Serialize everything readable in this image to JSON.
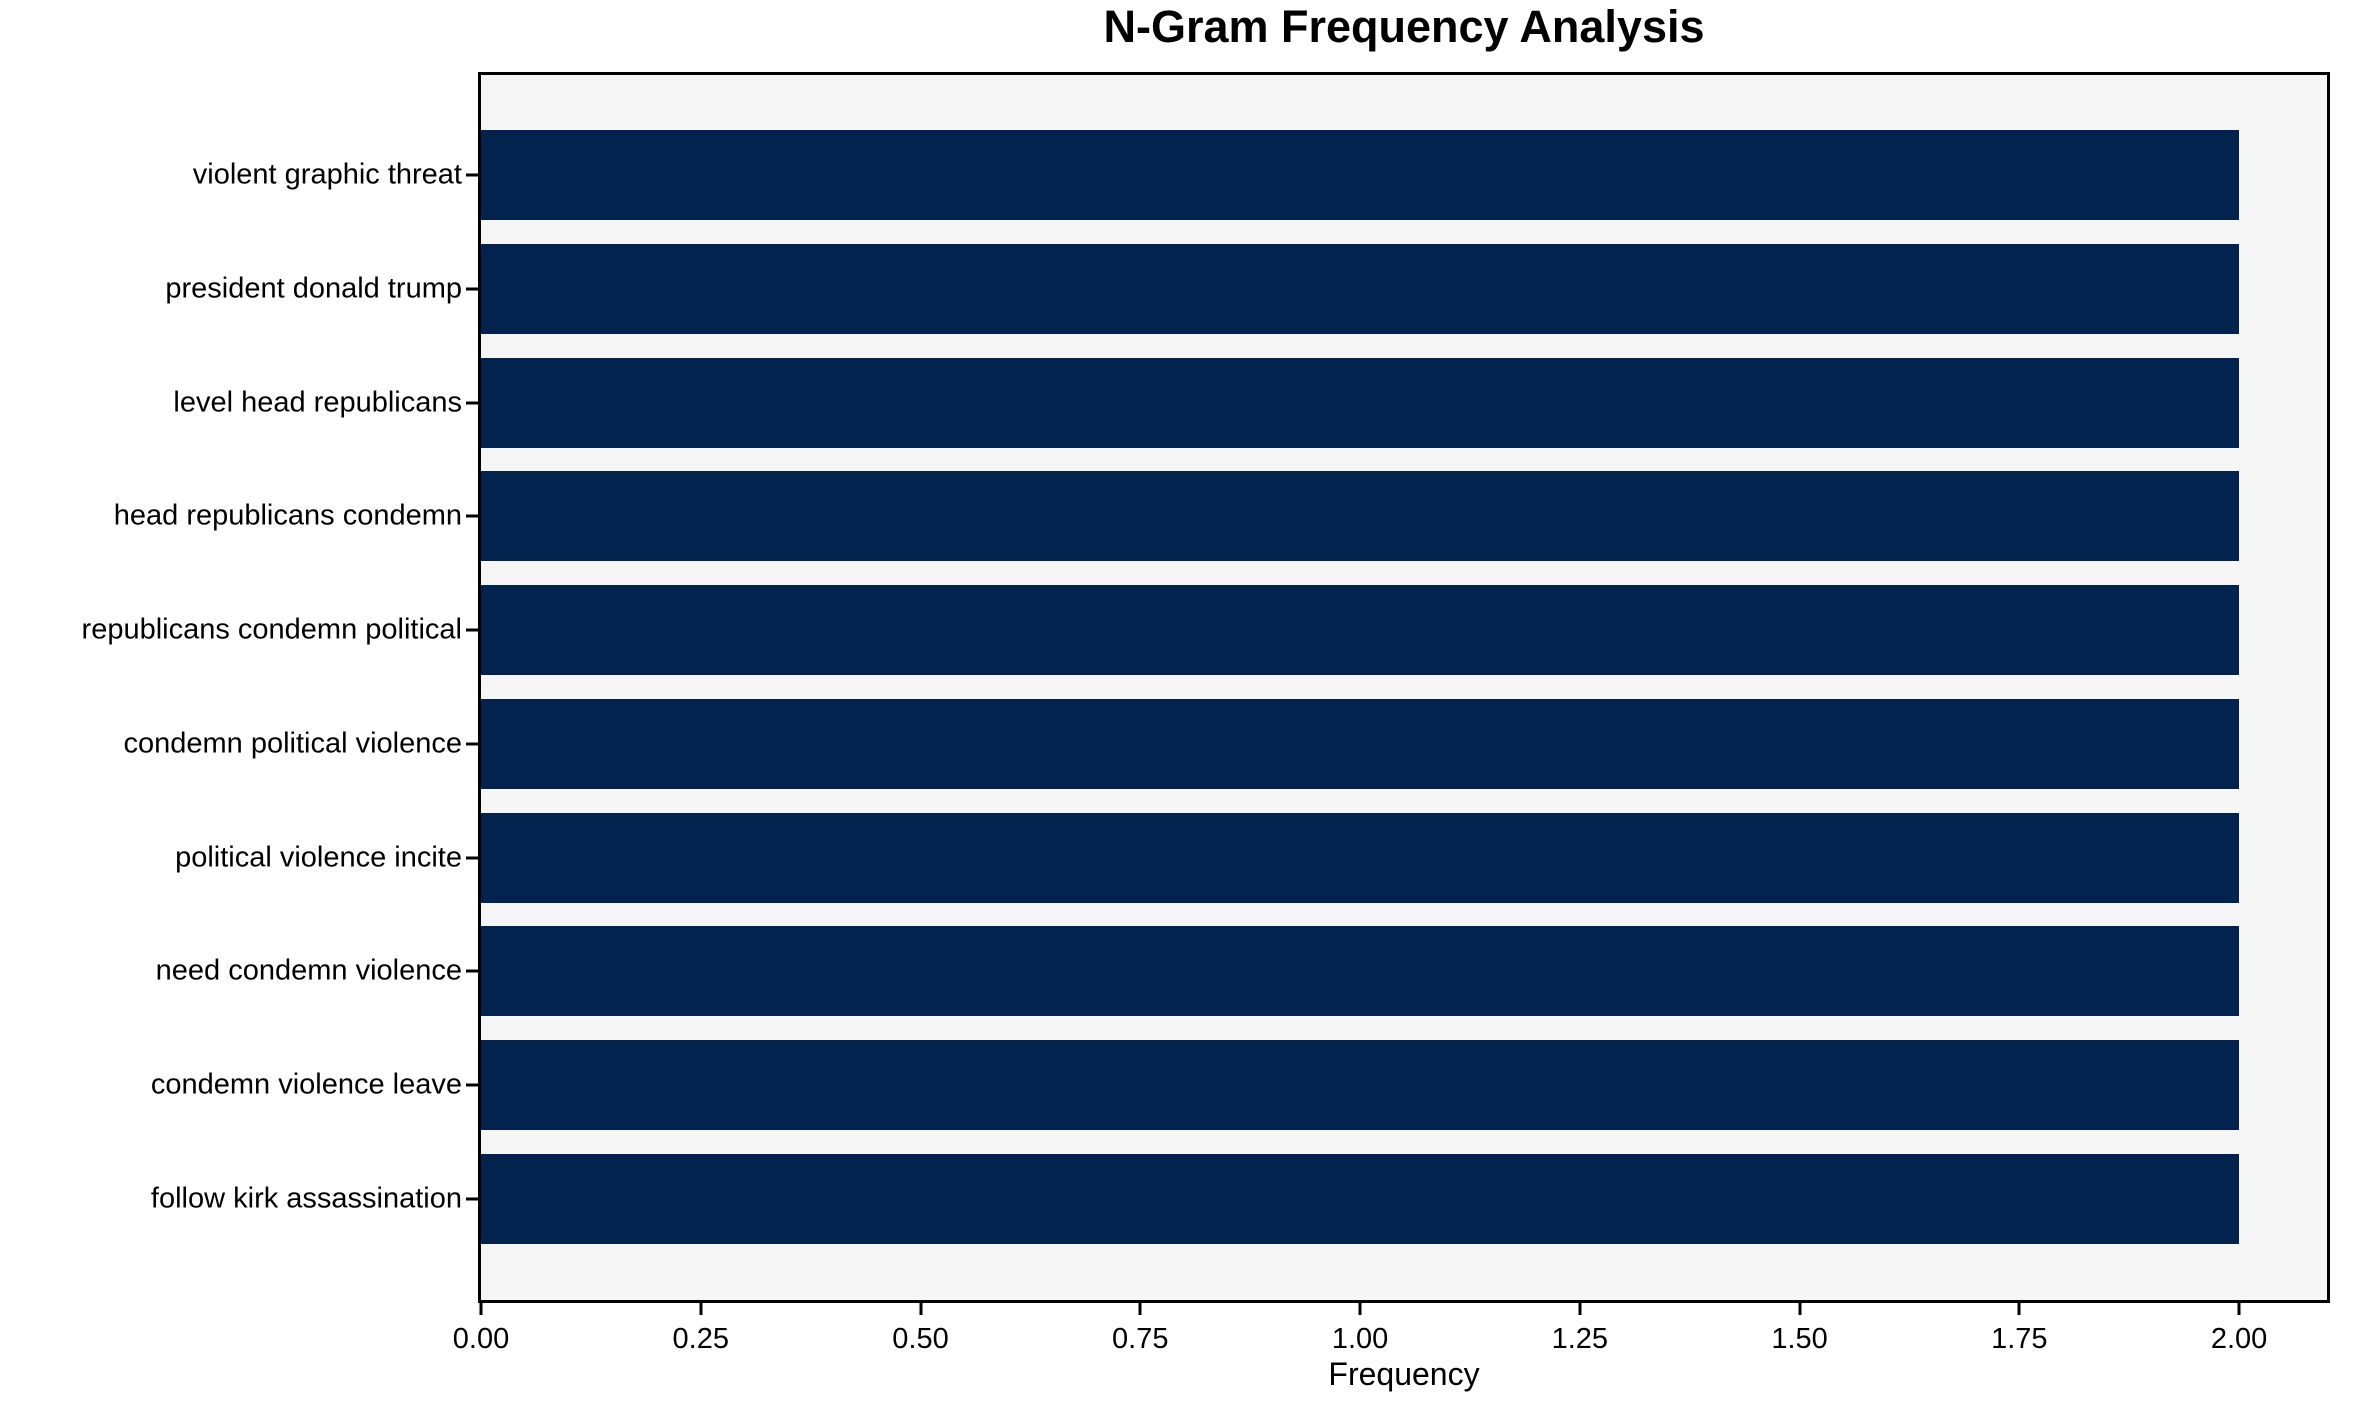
{
  "chart_data": {
    "type": "bar",
    "orientation": "horizontal",
    "title": "N-Gram Frequency Analysis",
    "xlabel": "Frequency",
    "ylabel": "",
    "categories": [
      "violent graphic threat",
      "president donald trump",
      "level head republicans",
      "head republicans condemn",
      "republicans condemn political",
      "condemn political violence",
      "political violence incite",
      "need condemn violence",
      "condemn violence leave",
      "follow kirk assassination"
    ],
    "values": [
      2,
      2,
      2,
      2,
      2,
      2,
      2,
      2,
      2,
      2
    ],
    "x_ticks": [
      "0.00",
      "0.25",
      "0.50",
      "0.75",
      "1.00",
      "1.25",
      "1.50",
      "1.75",
      "2.00"
    ],
    "xlim": [
      0,
      2.1
    ],
    "grid": false,
    "layout_hints": {
      "legend": "none",
      "bar_relative_height": 0.8
    },
    "colors": {
      "bar": "#02234d",
      "plot_background": "#f6f6f7",
      "figure_background": "#ffffff",
      "spine": "#000000",
      "text": "#000000"
    }
  }
}
